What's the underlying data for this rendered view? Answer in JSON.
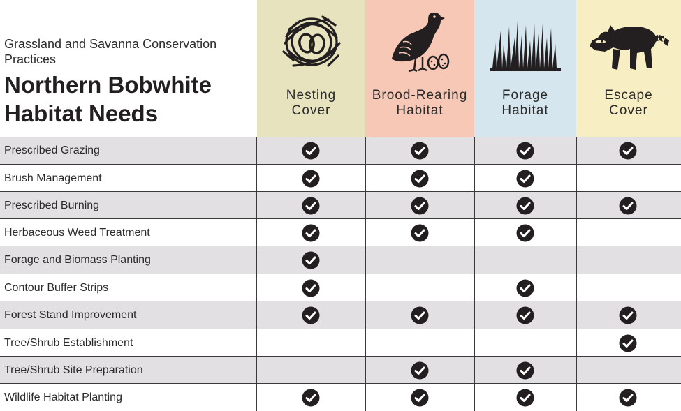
{
  "header": {
    "subtitle": "Grassland and Savanna Conservation Practices",
    "title": "Northern Bobwhite Habitat Needs"
  },
  "columns": [
    {
      "id": "nesting",
      "label_line1": "Nesting",
      "label_line2": "Cover",
      "icon": "nest-icon",
      "color": "#e6e3be"
    },
    {
      "id": "brood",
      "label_line1": "Brood-Rearing",
      "label_line2": "Habitat",
      "icon": "quail-eggs-icon",
      "color": "#f7c8b6"
    },
    {
      "id": "forage",
      "label_line1": "Forage",
      "label_line2": "Habitat",
      "icon": "grass-icon",
      "color": "#d6e6ee"
    },
    {
      "id": "escape",
      "label_line1": "Escape",
      "label_line2": "Cover",
      "icon": "raccoon-icon",
      "color": "#f7eec3"
    }
  ],
  "rows": [
    {
      "label": "Prescribed Grazing",
      "checks": [
        true,
        true,
        true,
        true
      ]
    },
    {
      "label": "Brush Management",
      "checks": [
        true,
        true,
        true,
        false
      ]
    },
    {
      "label": "Prescribed Burning",
      "checks": [
        true,
        true,
        true,
        true
      ]
    },
    {
      "label": "Herbaceous Weed Treatment",
      "checks": [
        true,
        true,
        true,
        false
      ]
    },
    {
      "label": "Forage and Biomass Planting",
      "checks": [
        true,
        false,
        false,
        false
      ]
    },
    {
      "label": "Contour Buffer Strips",
      "checks": [
        true,
        false,
        true,
        false
      ]
    },
    {
      "label": "Forest Stand Improvement",
      "checks": [
        true,
        true,
        true,
        true
      ]
    },
    {
      "label": "Tree/Shrub Establishment",
      "checks": [
        false,
        false,
        false,
        true
      ]
    },
    {
      "label": "Tree/Shrub Site Preparation",
      "checks": [
        false,
        true,
        true,
        false
      ]
    },
    {
      "label": "Wildlife Habitat Planting",
      "checks": [
        true,
        true,
        true,
        true
      ]
    }
  ],
  "colors": {
    "ink": "#231f20",
    "row_shade": "#e2e0e3",
    "grid_line": "#3a3a3a"
  }
}
